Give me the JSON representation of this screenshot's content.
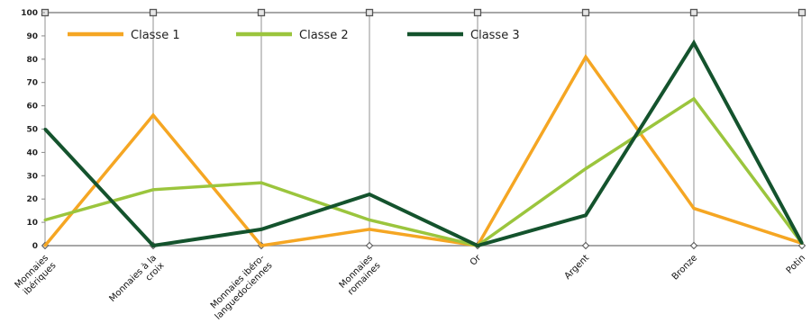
{
  "chart_data": {
    "type": "line",
    "title": "",
    "xlabel": "",
    "ylabel": "",
    "ylim": [
      0,
      100
    ],
    "yticks": [
      0,
      10,
      20,
      30,
      40,
      50,
      60,
      70,
      80,
      90,
      100
    ],
    "grid": "vertical lines at categories",
    "legend_position": "top-left",
    "categories": [
      [
        "Monnaies",
        "ibériques"
      ],
      [
        "Monnaies à la",
        "croix"
      ],
      [
        "Monnaies ibéro-",
        "languedociennes"
      ],
      [
        "Monnaies",
        "romaines"
      ],
      [
        "Or"
      ],
      [
        "Argent"
      ],
      [
        "Bronze"
      ],
      [
        "Potin"
      ]
    ],
    "series": [
      {
        "name": "Classe 1",
        "color": "#f5a623",
        "values": [
          0,
          56,
          0,
          7,
          0,
          81,
          16,
          1
        ]
      },
      {
        "name": "Classe 2",
        "color": "#9bc53d",
        "values": [
          11,
          24,
          27,
          11,
          0,
          33,
          63,
          1
        ]
      },
      {
        "name": "Classe 3",
        "color": "#14532d",
        "values": [
          50,
          0,
          7,
          22,
          0,
          13,
          87,
          1
        ]
      }
    ]
  }
}
